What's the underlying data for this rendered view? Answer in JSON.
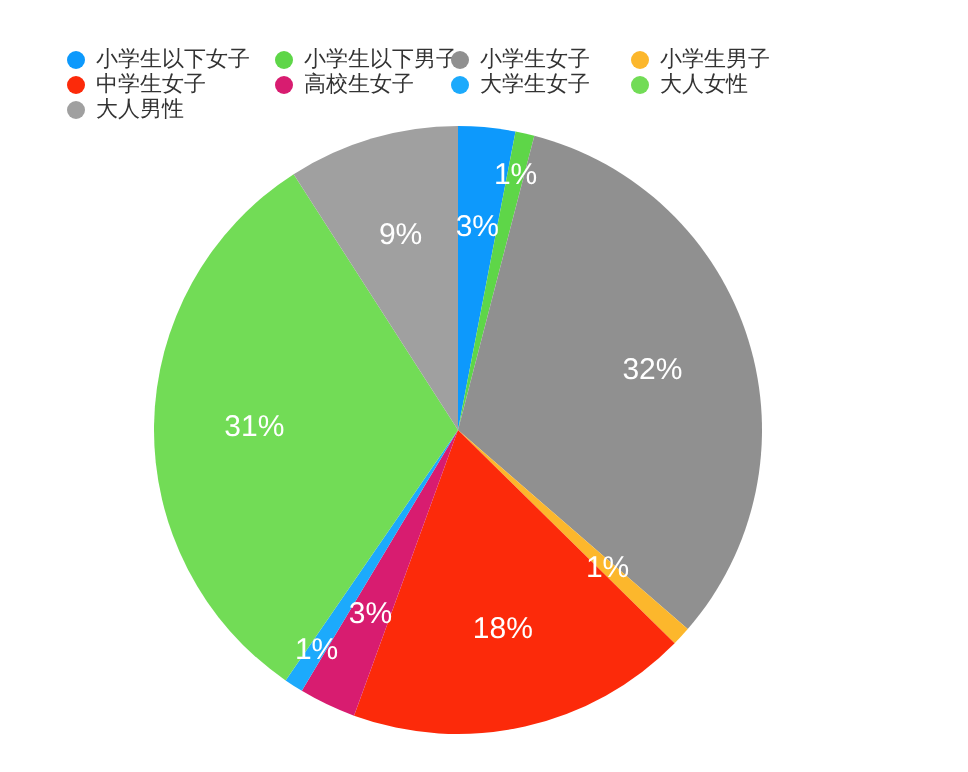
{
  "chart_data": {
    "type": "pie",
    "categories": [
      "小学生以下女子",
      "小学生以下男子",
      "小学生女子",
      "小学生男子",
      "中学生女子",
      "高校生女子",
      "大学生女子",
      "大人女性",
      "大人男性"
    ],
    "values": [
      3,
      1,
      32,
      1,
      18,
      3,
      1,
      31,
      9
    ],
    "value_labels": [
      "3%",
      "1%",
      "32%",
      "1%",
      "18%",
      "3%",
      "1%",
      "31%",
      "9%"
    ],
    "colors": [
      "#0d99fc",
      "#5ed648",
      "#909090",
      "#fcb72c",
      "#fc2a0a",
      "#d81c70",
      "#1caafc",
      "#72dc56",
      "#a0a0a0"
    ],
    "legend": "top left"
  }
}
